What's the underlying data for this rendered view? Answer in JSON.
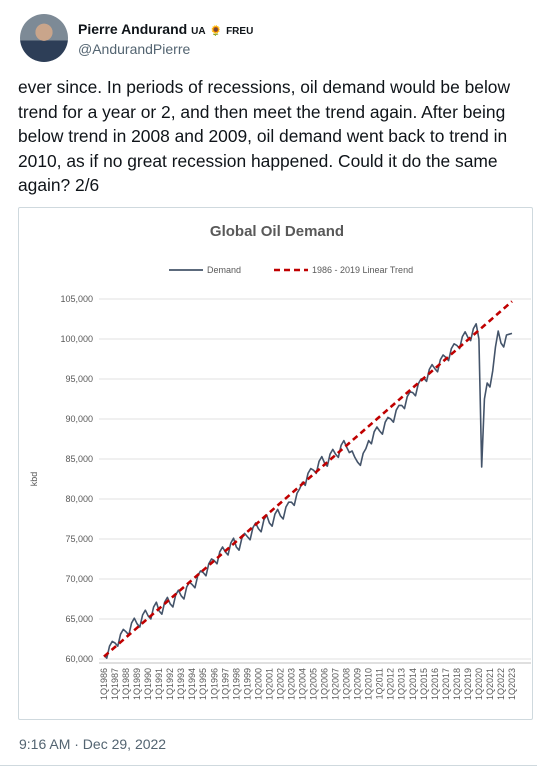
{
  "author": {
    "name": "Pierre Andurand",
    "badges": [
      "UA",
      "🌻",
      "FREU"
    ],
    "handle": "@AndurandPierre"
  },
  "text": "ever since. In periods of recessions, oil demand would be below trend for a year or 2, and then meet the trend again. After being below trend in 2008 and 2009, oil demand went back to trend in 2010, as if no great recession happened. Could it do the same again? 2/6",
  "timestamp": "9:16 AM · Dec 29, 2022",
  "chart_data": {
    "type": "line",
    "title": "Global Oil Demand",
    "ylabel": "kbd",
    "grid": true,
    "legend": "top",
    "categories": [
      "1Q1986",
      null,
      null,
      null,
      "1Q1987",
      null,
      null,
      null,
      "1Q1988",
      null,
      null,
      null,
      "1Q1989",
      null,
      null,
      null,
      "1Q1990",
      null,
      null,
      null,
      "1Q1991",
      null,
      null,
      null,
      "1Q1992",
      null,
      null,
      null,
      "1Q1993",
      null,
      null,
      null,
      "1Q1994",
      null,
      null,
      null,
      "1Q1995",
      null,
      null,
      null,
      "1Q1996",
      null,
      null,
      null,
      "1Q1997",
      null,
      null,
      null,
      "1Q1998",
      null,
      null,
      null,
      "1Q1999",
      null,
      null,
      null,
      "1Q2000",
      null,
      null,
      null,
      "1Q2001",
      null,
      null,
      null,
      "1Q2002",
      null,
      null,
      null,
      "1Q2003",
      null,
      null,
      null,
      "1Q2004",
      null,
      null,
      null,
      "1Q2005",
      null,
      null,
      null,
      "1Q2006",
      null,
      null,
      null,
      "1Q2007",
      null,
      null,
      null,
      "1Q2008",
      null,
      null,
      null,
      "1Q2009",
      null,
      null,
      null,
      "1Q2010",
      null,
      null,
      null,
      "1Q2011",
      null,
      null,
      null,
      "1Q2012",
      null,
      null,
      null,
      "1Q2013",
      null,
      null,
      null,
      "1Q2014",
      null,
      null,
      null,
      "1Q2015",
      null,
      null,
      null,
      "1Q2016",
      null,
      null,
      null,
      "1Q2017",
      null,
      null,
      null,
      "1Q2018",
      null,
      null,
      null,
      "1Q2019",
      null,
      null,
      null,
      "1Q2020",
      null,
      null,
      null,
      "1Q2021",
      null,
      null,
      null,
      "1Q2022",
      null,
      null,
      null,
      "1Q2023"
    ],
    "series": [
      {
        "name": "Demand",
        "color": "#44546a",
        "line_style": "solid",
        "values": [
          60500,
          60100,
          61600,
          62200,
          62000,
          61600,
          63100,
          63700,
          63400,
          63000,
          64500,
          65100,
          64400,
          64000,
          65500,
          66100,
          65400,
          65000,
          66500,
          67100,
          66000,
          65600,
          67100,
          67700,
          66900,
          66500,
          68000,
          68600,
          67900,
          67500,
          69000,
          69600,
          69300,
          68900,
          70400,
          71000,
          70800,
          70400,
          71900,
          72500,
          72300,
          71900,
          73400,
          74000,
          73400,
          73000,
          74500,
          75100,
          74000,
          73600,
          75100,
          75700,
          75300,
          74900,
          76400,
          77000,
          76300,
          75900,
          77400,
          78000,
          77000,
          76600,
          78100,
          78700,
          77900,
          77500,
          79000,
          79600,
          79600,
          79200,
          80700,
          81300,
          82100,
          81700,
          83200,
          83800,
          83600,
          83200,
          84700,
          85300,
          84500,
          84100,
          85600,
          86200,
          85600,
          85200,
          86700,
          87300,
          86500,
          85800,
          86000,
          85200,
          84600,
          84200,
          85700,
          86300,
          87300,
          86900,
          88400,
          89000,
          88500,
          88100,
          89600,
          90200,
          90000,
          89600,
          91100,
          91700,
          91700,
          91300,
          92800,
          93400,
          93300,
          92900,
          94400,
          95000,
          95100,
          94700,
          96200,
          96800,
          96300,
          95900,
          97400,
          98000,
          97700,
          97300,
          98800,
          99400,
          99200,
          98800,
          100300,
          100900,
          100200,
          99800,
          101300,
          101900,
          100000,
          84000,
          92500,
          94500,
          94000,
          96000,
          99000,
          101000,
          99500,
          99000,
          100500,
          100600,
          100700
        ]
      },
      {
        "name": "1986 - 2019 Linear Trend",
        "color": "#c00000",
        "line_style": "dashed",
        "values": [
          60300,
          60600,
          60900,
          61200,
          61500,
          61800,
          62100,
          62400,
          62700,
          63000,
          63300,
          63600,
          63900,
          64200,
          64500,
          64800,
          65100,
          65400,
          65700,
          66000,
          66300,
          66600,
          66900,
          67200,
          67500,
          67800,
          68100,
          68400,
          68700,
          69000,
          69300,
          69600,
          69900,
          70200,
          70500,
          70800,
          71100,
          71400,
          71700,
          72000,
          72300,
          72600,
          72900,
          73200,
          73500,
          73800,
          74100,
          74400,
          74700,
          75000,
          75300,
          75600,
          75900,
          76200,
          76500,
          76800,
          77100,
          77400,
          77700,
          78000,
          78300,
          78600,
          78900,
          79200,
          79500,
          79800,
          80100,
          80400,
          80700,
          81000,
          81300,
          81600,
          81900,
          82200,
          82500,
          82800,
          83100,
          83400,
          83700,
          84000,
          84300,
          84600,
          84900,
          85200,
          85500,
          85800,
          86100,
          86400,
          86700,
          87000,
          87300,
          87600,
          87900,
          88200,
          88500,
          88800,
          89100,
          89400,
          89700,
          90000,
          90300,
          90600,
          90900,
          91200,
          91500,
          91800,
          92100,
          92400,
          92700,
          93000,
          93300,
          93600,
          93900,
          94200,
          94500,
          94800,
          95100,
          95400,
          95700,
          96000,
          96300,
          96600,
          96900,
          97200,
          97500,
          97800,
          98100,
          98400,
          98700,
          99000,
          99300,
          99600,
          99900,
          100200,
          100500,
          100800,
          101100,
          101400,
          101700,
          102000,
          102300,
          102600,
          102900,
          103200,
          103500,
          103800,
          104100,
          104400,
          104700
        ]
      }
    ],
    "ylim": [
      60000,
      105000
    ],
    "yticks": [
      {
        "value": 60000,
        "label": "60,000"
      },
      {
        "value": 65000,
        "label": "65,000"
      },
      {
        "value": 70000,
        "label": "70,000"
      },
      {
        "value": 75000,
        "label": "75,000"
      },
      {
        "value": 80000,
        "label": "80,000"
      },
      {
        "value": 85000,
        "label": "85,000"
      },
      {
        "value": 90000,
        "label": "90,000"
      },
      {
        "value": 95000,
        "label": "95,000"
      },
      {
        "value": 100000,
        "label": "100,000"
      },
      {
        "value": 105000,
        "label": "105,000"
      }
    ]
  }
}
